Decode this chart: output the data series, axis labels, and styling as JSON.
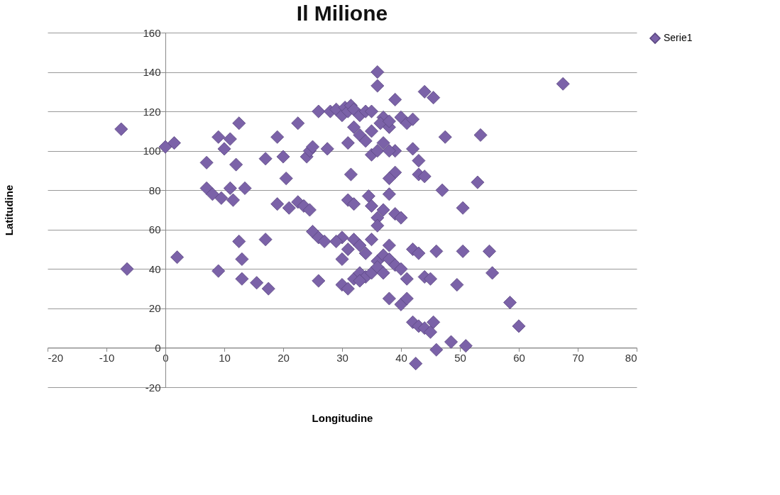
{
  "chart_data": {
    "type": "scatter",
    "title": "Il Milione",
    "xlabel": "Longitudine",
    "ylabel": "Latitudine",
    "xlim": [
      -20,
      80
    ],
    "xticks": [
      -20,
      -10,
      0,
      10,
      20,
      30,
      40,
      50,
      60,
      70,
      80
    ],
    "ylim": [
      -20,
      160
    ],
    "yticks": [
      -20,
      0,
      20,
      40,
      60,
      80,
      100,
      120,
      140,
      160
    ],
    "grid": "y",
    "legend": "right",
    "marker": "diamond",
    "series": [
      {
        "name": "Serie1",
        "color": "#7b62a8",
        "x": [
          -7.5,
          -6.5,
          0,
          1.5,
          2,
          7,
          7,
          8,
          9,
          9,
          9.5,
          10,
          11,
          11,
          11.5,
          12,
          12.5,
          12.5,
          13,
          13.5,
          13,
          15.5,
          17,
          17,
          17.5,
          19,
          19,
          20,
          20.5,
          21,
          22.5,
          22.5,
          23.5,
          24,
          24.5,
          25,
          24.5,
          25,
          26,
          27,
          26,
          27.5,
          26,
          28,
          29,
          30,
          30.5,
          31,
          31.5,
          32,
          33,
          34,
          31,
          32,
          33,
          35,
          36,
          36,
          37,
          36.5,
          35,
          34,
          35,
          36,
          37,
          38,
          39,
          38,
          40,
          41,
          42,
          44,
          45.5,
          47.5,
          53.5,
          42,
          39,
          38,
          39,
          38,
          43,
          43,
          44,
          31.5,
          47,
          53,
          50.5,
          31,
          32,
          34.5,
          35,
          36,
          37,
          38,
          39,
          40,
          36,
          35,
          30,
          31,
          32,
          33,
          34,
          30,
          31,
          32,
          33,
          34,
          35,
          36,
          37,
          38,
          39,
          40,
          41,
          38,
          40,
          41,
          42,
          43,
          44,
          45,
          45.5,
          42.5,
          46,
          48.5,
          51,
          42,
          43,
          44,
          45,
          46,
          49.5,
          50.5,
          55,
          55.5,
          58.5,
          60,
          67.5,
          29,
          30,
          33,
          36,
          37,
          38
        ],
        "values": [
          111,
          40,
          102,
          104,
          46,
          94,
          81,
          78,
          107,
          39,
          76,
          101,
          106,
          81,
          75,
          93,
          114,
          54,
          45,
          81,
          35,
          33,
          55,
          96,
          30,
          107,
          73,
          97,
          86,
          71,
          74,
          114,
          72,
          97,
          100,
          102,
          70,
          59,
          56,
          54,
          34,
          101,
          120,
          120,
          121,
          118,
          122,
          120,
          123,
          121,
          118,
          120,
          104,
          112,
          108,
          120,
          140,
          133,
          117,
          114,
          110,
          105,
          98,
          100,
          104,
          112,
          126,
          115,
          117,
          114,
          116,
          130,
          127,
          107,
          108,
          101,
          100,
          100,
          89,
          86,
          95,
          88,
          87,
          88,
          80,
          84,
          71,
          75,
          73,
          77,
          72,
          66,
          70,
          78,
          68,
          66,
          62,
          55,
          56,
          50,
          55,
          52,
          48,
          32,
          30,
          35,
          38,
          36,
          38,
          44,
          47,
          45,
          42,
          40,
          35,
          25,
          22,
          25,
          13,
          11,
          10,
          8,
          13,
          -8,
          -1,
          3,
          1,
          50,
          48,
          36,
          35,
          49,
          32,
          49,
          49,
          38,
          23,
          11,
          134,
          54,
          45,
          34,
          41,
          38,
          52
        ]
      }
    ]
  }
}
